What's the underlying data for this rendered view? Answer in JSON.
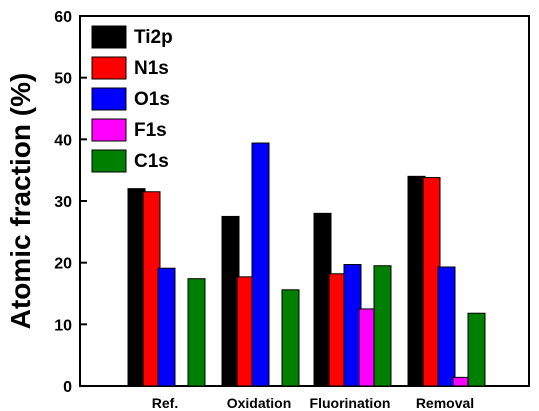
{
  "chart_data": {
    "type": "bar",
    "title": "",
    "xlabel": "",
    "ylabel": "Atomic fraction (%)",
    "ylim": [
      0,
      60
    ],
    "yticks": [
      0,
      10,
      20,
      30,
      40,
      50,
      60
    ],
    "categories": [
      "Ref.",
      "Oxidation",
      "Fluorination",
      "Removal"
    ],
    "series": [
      {
        "name": "Ti2p",
        "color": "#000000",
        "values": [
          32.0,
          27.5,
          28.0,
          34.0
        ]
      },
      {
        "name": "N1s",
        "color": "#ff0000",
        "values": [
          31.5,
          17.7,
          18.2,
          33.8
        ]
      },
      {
        "name": "O1s",
        "color": "#0000ff",
        "values": [
          19.1,
          39.4,
          19.7,
          19.3
        ]
      },
      {
        "name": "F1s",
        "color": "#ff00ff",
        "values": [
          0,
          0,
          12.5,
          1.4
        ]
      },
      {
        "name": "C1s",
        "color": "#008000",
        "values": [
          17.4,
          15.6,
          19.5,
          11.8
        ]
      }
    ],
    "legend_position": "top-left",
    "grid": false
  }
}
